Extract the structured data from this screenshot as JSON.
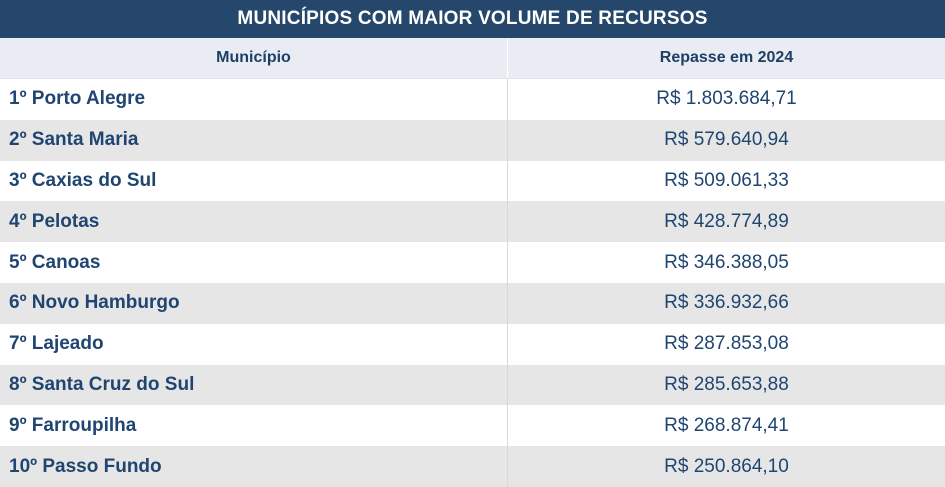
{
  "table": {
    "title": "MUNICÍPIOS COM MAIOR VOLUME DE RECURSOS",
    "headers": [
      "Município",
      "Repasse em 2024"
    ],
    "rows": [
      {
        "municipio": "1º Porto Alegre",
        "repasse": "R$ 1.803.684,71"
      },
      {
        "municipio": "2º Santa Maria",
        "repasse": "R$ 579.640,94"
      },
      {
        "municipio": "3º Caxias do Sul",
        "repasse": "R$ 509.061,33"
      },
      {
        "municipio": "4º Pelotas",
        "repasse": "R$ 428.774,89"
      },
      {
        "municipio": "5º Canoas",
        "repasse": "R$ 346.388,05"
      },
      {
        "municipio": "6º Novo Hamburgo",
        "repasse": "R$ 336.932,66"
      },
      {
        "municipio": "7º Lajeado",
        "repasse": "R$ 287.853,08"
      },
      {
        "municipio": "8º Santa Cruz do Sul",
        "repasse": "R$ 285.653,88"
      },
      {
        "municipio": "9º Farroupilha",
        "repasse": "R$ 268.874,41"
      },
      {
        "municipio": "10º Passo Fundo",
        "repasse": "R$ 250.864,10"
      }
    ]
  },
  "chart_data": {
    "type": "table",
    "title": "MUNICÍPIOS COM MAIOR VOLUME DE RECURSOS",
    "columns": [
      "Município",
      "Repasse em 2024"
    ],
    "categories": [
      "Porto Alegre",
      "Santa Maria",
      "Caxias do Sul",
      "Pelotas",
      "Canoas",
      "Novo Hamburgo",
      "Lajeado",
      "Santa Cruz do Sul",
      "Farroupilha",
      "Passo Fundo"
    ],
    "values": [
      1803684.71,
      579640.94,
      509061.33,
      428774.89,
      346388.05,
      336932.66,
      287853.08,
      285653.88,
      268874.41,
      250864.1
    ]
  },
  "colors": {
    "title_bg": "#24476b",
    "header_bg": "#e9ecf3",
    "text": "#1f4570",
    "row_alt_bg": "#e6e6e6"
  }
}
